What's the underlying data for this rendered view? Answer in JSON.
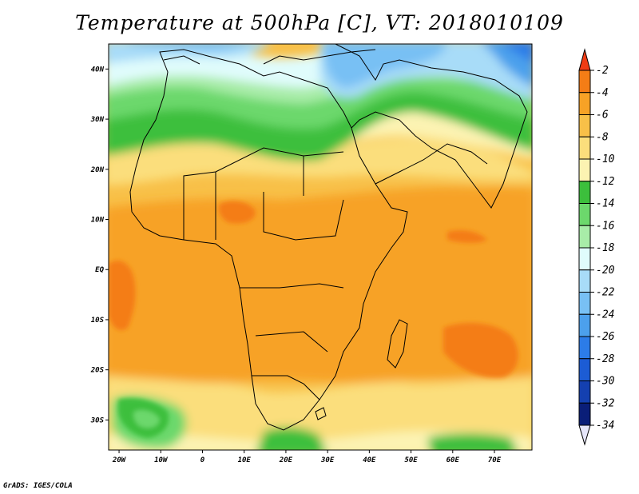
{
  "title": "Temperature at 500hPa [C], VT: 2018010109",
  "credit": "GrADS: IGES/COLA",
  "x_ticks": [
    "20W",
    "10W",
    "0",
    "10E",
    "20E",
    "30E",
    "40E",
    "50E",
    "60E",
    "70E"
  ],
  "x_tick_values": [
    -20,
    -10,
    0,
    10,
    20,
    30,
    40,
    50,
    60,
    70
  ],
  "y_ticks": [
    "40N",
    "30N",
    "20N",
    "10N",
    "EQ",
    "10S",
    "20S",
    "30S"
  ],
  "y_tick_values": [
    40,
    30,
    20,
    10,
    0,
    -10,
    -20,
    -30
  ],
  "lon_range": [
    -22.5,
    79
  ],
  "lat_range": [
    -36,
    45
  ],
  "colorbar": {
    "labels": [
      "-2",
      "-4",
      "-6",
      "-8",
      "-10",
      "-12",
      "-14",
      "-16",
      "-18",
      "-20",
      "-22",
      "-24",
      "-26",
      "-28",
      "-30",
      "-32",
      "-34"
    ],
    "colors": [
      "#f03c14",
      "#f47d16",
      "#f7a226",
      "#f8c048",
      "#fbde7c",
      "#fcf3b2",
      "#3cbf3c",
      "#6cd86c",
      "#a8eca8",
      "#e0fcfc",
      "#a8dcf8",
      "#78c0f4",
      "#4ca0ec",
      "#2c7ce8",
      "#1c5cd4",
      "#1440b0",
      "#0a1e78",
      "#e6e6fa"
    ]
  }
}
